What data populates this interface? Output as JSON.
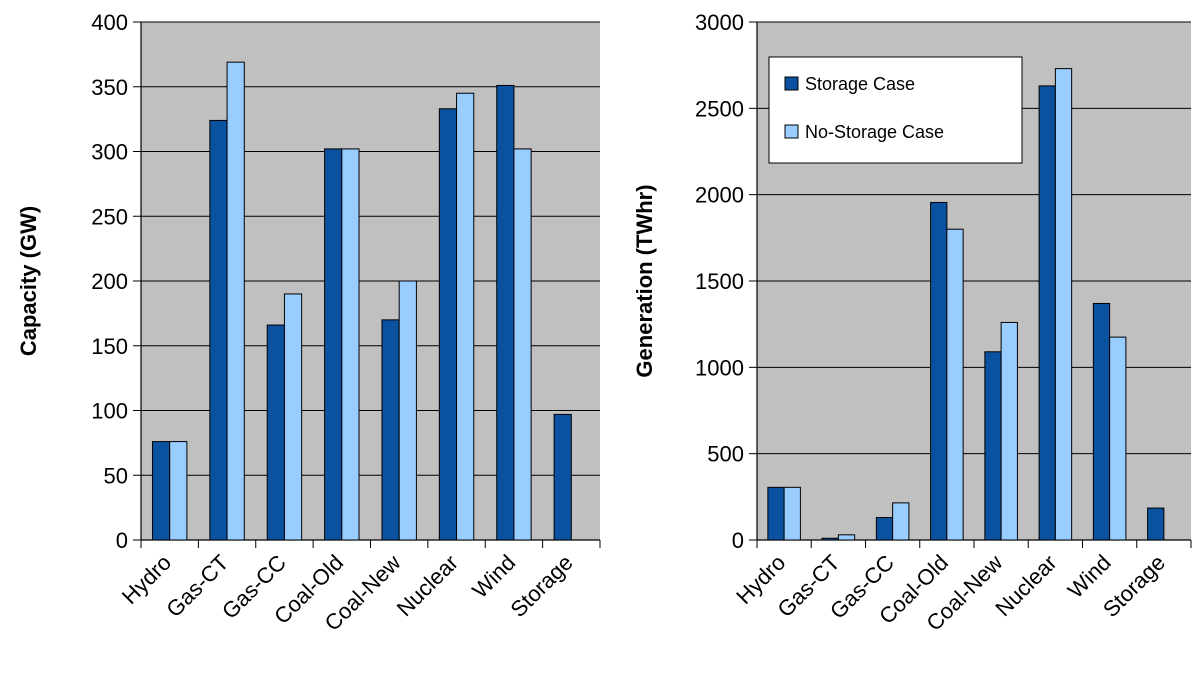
{
  "chart_data": [
    {
      "type": "bar",
      "categories": [
        "Hydro",
        "Gas-CT",
        "Gas-CC",
        "Coal-Old",
        "Coal-New",
        "Nuclear",
        "Wind",
        "Storage"
      ],
      "series": [
        {
          "name": "Storage Case",
          "values": [
            76,
            324,
            166,
            302,
            170,
            333,
            351,
            97
          ]
        },
        {
          "name": "No-Storage Case",
          "values": [
            76,
            369,
            190,
            302,
            200,
            345,
            302,
            0
          ]
        }
      ],
      "ylabel": "Capacity (GW)",
      "xlabel": "",
      "ylim": [
        0,
        400
      ],
      "yticks": [
        0,
        50,
        100,
        150,
        200,
        250,
        300,
        350,
        400
      ],
      "grid": true,
      "legend": "none"
    },
    {
      "type": "bar",
      "categories": [
        "Hydro",
        "Gas-CT",
        "Gas-CC",
        "Coal-Old",
        "Coal-New",
        "Nuclear",
        "Wind",
        "Storage"
      ],
      "series": [
        {
          "name": "Storage Case",
          "values": [
            305,
            10,
            130,
            1955,
            1090,
            2630,
            1370,
            185
          ]
        },
        {
          "name": "No-Storage Case",
          "values": [
            305,
            30,
            215,
            1800,
            1260,
            2730,
            1175,
            0
          ]
        }
      ],
      "ylabel": "Generation (TWhr)",
      "xlabel": "",
      "ylim": [
        0,
        3000
      ],
      "yticks": [
        0,
        500,
        1000,
        1500,
        2000,
        2500,
        3000
      ],
      "grid": true,
      "legend": "top-left"
    }
  ],
  "colors": {
    "storage_case": "#0a52a0",
    "no_storage_case": "#99ccff",
    "plot_background": "#c0c0c0",
    "outline": "#000000"
  }
}
